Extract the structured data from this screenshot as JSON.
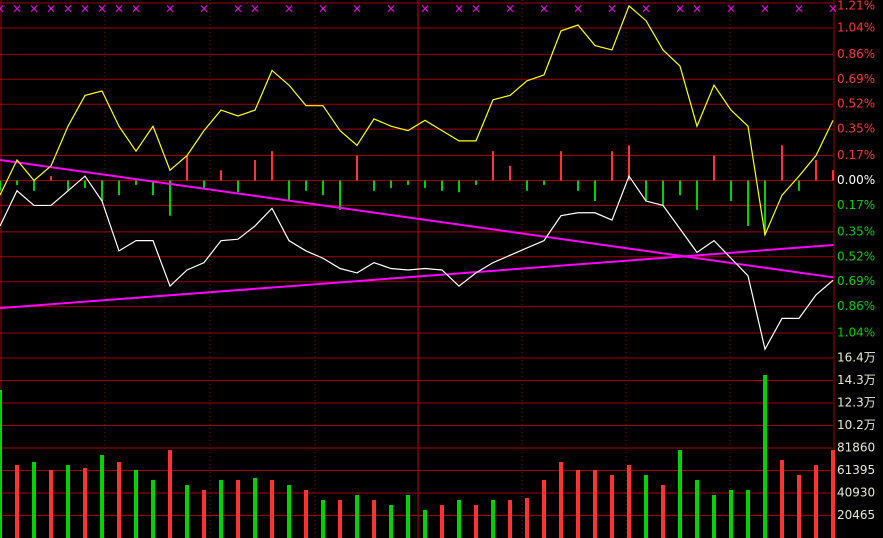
{
  "chart_data": [
    {
      "type": "line",
      "ylim": [
        -1.21,
        1.21
      ],
      "yticks": [
        {
          "value": 1.21,
          "label": "1.21%"
        },
        {
          "value": 1.04,
          "label": "1.04%"
        },
        {
          "value": 0.86,
          "label": "0.86%"
        },
        {
          "value": 0.69,
          "label": "0.69%"
        },
        {
          "value": 0.52,
          "label": "0.52%"
        },
        {
          "value": 0.35,
          "label": "0.35%"
        },
        {
          "value": 0.17,
          "label": "0.17%"
        },
        {
          "value": 0,
          "label": "0.00%"
        },
        {
          "value": -0.17,
          "label": "0.17%"
        },
        {
          "value": -0.35,
          "label": "0.35%"
        },
        {
          "value": -0.52,
          "label": "0.52%"
        },
        {
          "value": -0.69,
          "label": "0.69%"
        },
        {
          "value": -0.86,
          "label": "0.86%"
        },
        {
          "value": -1.04,
          "label": "1.04%"
        }
      ],
      "grid": true,
      "up_color": "#ff3232",
      "down_color": "#00d200",
      "flat_color": "#ffffff",
      "series": [
        {
          "color": "#ffffff",
          "values": [
            -0.31,
            -0.07,
            -0.17,
            -0.17,
            -0.07,
            0.03,
            -0.14,
            -0.48,
            -0.41,
            -0.41,
            -0.72,
            -0.61,
            -0.56,
            -0.41,
            -0.4,
            -0.31,
            -0.19,
            -0.41,
            -0.48,
            -0.53,
            -0.6,
            -0.63,
            -0.56,
            -0.6,
            -0.61,
            -0.6,
            -0.61,
            -0.72,
            -0.63,
            -0.56,
            -0.51,
            -0.46,
            -0.41,
            -0.24,
            -0.22,
            -0.22,
            -0.27,
            0.03,
            -0.14,
            -0.17,
            -0.33,
            -0.49,
            -0.41,
            -0.53,
            -0.65,
            -1.15,
            -0.94,
            -0.94,
            -0.78,
            -0.68
          ]
        },
        {
          "color": "#ffff00",
          "values": [
            -0.1,
            0.14,
            0.0,
            0.1,
            0.37,
            0.58,
            0.61,
            0.37,
            0.2,
            0.37,
            0.07,
            0.17,
            0.34,
            0.48,
            0.44,
            0.48,
            0.75,
            0.65,
            0.51,
            0.51,
            0.34,
            0.24,
            0.42,
            0.37,
            0.34,
            0.41,
            0.34,
            0.27,
            0.27,
            0.55,
            0.58,
            0.68,
            0.72,
            1.02,
            1.06,
            0.92,
            0.89,
            1.19,
            1.09,
            0.89,
            0.78,
            0.37,
            0.65,
            0.48,
            0.37,
            -0.37,
            -0.1,
            0.03,
            0.17,
            0.41
          ]
        }
      ],
      "bars": [
        -0.07,
        -0.03,
        -0.07,
        0.03,
        -0.07,
        -0.05,
        -0.14,
        -0.1,
        -0.03,
        -0.1,
        -0.24,
        0.17,
        -0.05,
        0.07,
        -0.08,
        0.14,
        0.2,
        -0.14,
        -0.07,
        -0.1,
        -0.2,
        0.17,
        -0.07,
        -0.05,
        -0.03,
        -0.05,
        -0.07,
        -0.08,
        -0.03,
        0.2,
        0.1,
        -0.07,
        -0.03,
        0.2,
        -0.07,
        -0.14,
        0.2,
        0.24,
        -0.14,
        -0.17,
        -0.1,
        -0.2,
        0.17,
        -0.14,
        -0.31,
        -0.37,
        0.24,
        -0.07,
        0.14,
        0.07
      ],
      "trendlines": [
        {
          "color": "#ff00ff",
          "values": [
            0.14,
            -0.66
          ]
        },
        {
          "color": "#ff00ff",
          "values": [
            -0.87,
            -0.44
          ]
        }
      ],
      "markers": {
        "symbol": "×",
        "color": "#ff00ff",
        "x": [
          0,
          1,
          2,
          3,
          4,
          5,
          6,
          7,
          8,
          10,
          12,
          14,
          15,
          17,
          19,
          21,
          23,
          25,
          27,
          28,
          30,
          32,
          34,
          36,
          38,
          40,
          41,
          43,
          45,
          47,
          49
        ]
      }
    },
    {
      "type": "bar",
      "ylim": [
        0,
        163720
      ],
      "yticks": [
        {
          "value": 163720,
          "label": "16.4万"
        },
        {
          "value": 143255,
          "label": "14.3万"
        },
        {
          "value": 122790,
          "label": "12.3万"
        },
        {
          "value": 102325,
          "label": "10.2万"
        },
        81860,
        61395,
        40930,
        20465
      ],
      "grid": true,
      "up_color": "#ff3232",
      "down_color": "#00d200",
      "values": [
        134600,
        66400,
        69100,
        61900,
        66400,
        63700,
        75500,
        69100,
        61900,
        52800,
        80000,
        48200,
        43700,
        52800,
        52800,
        54600,
        52800,
        48200,
        43700,
        34600,
        34600,
        39100,
        34600,
        30000,
        39100,
        25500,
        30000,
        34600,
        30000,
        34600,
        34600,
        36400,
        52800,
        69100,
        61900,
        61900,
        57300,
        66400,
        57300,
        48200,
        80000,
        52800,
        39100,
        43700,
        43700,
        148300,
        70900,
        57300,
        66400,
        80000
      ],
      "up": [
        false,
        true,
        false,
        true,
        false,
        true,
        false,
        true,
        false,
        false,
        true,
        false,
        true,
        false,
        true,
        false,
        true,
        false,
        true,
        false,
        true,
        false,
        true,
        false,
        false,
        false,
        true,
        false,
        true,
        false,
        true,
        true,
        true,
        true,
        true,
        true,
        true,
        true,
        false,
        true,
        false,
        false,
        false,
        false,
        false,
        false,
        true,
        true,
        true,
        true
      ]
    }
  ]
}
